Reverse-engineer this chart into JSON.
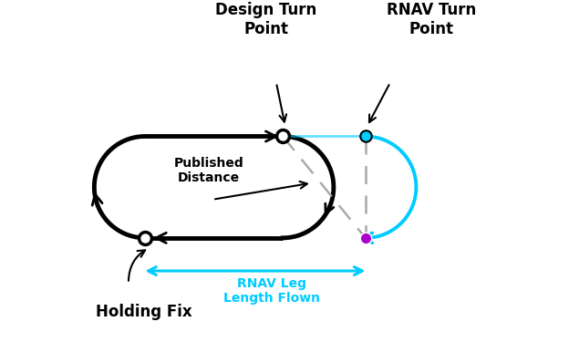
{
  "background_color": "#ffffff",
  "cyan_color": "#00ccff",
  "purple_color": "#aa00cc",
  "black_color": "#000000",
  "gray_color": "#aaaaaa",
  "design_label": "Design Turn\nPoint",
  "rnav_label": "RNAV Turn\nPoint",
  "holding_label": "Holding Fix",
  "published_label": "Published\nDistance",
  "rnav_leg_label": "RNAV Leg\nLength Flown",
  "title_fontsize": 12,
  "label_fontsize": 10
}
